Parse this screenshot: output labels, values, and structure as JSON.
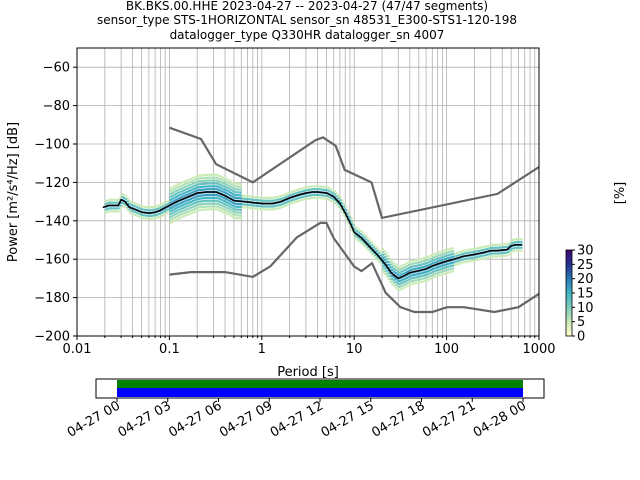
{
  "title_lines": [
    "BK.BKS.00.HHE   2023-04-27 -- 2023-04-27  (47/47 segments)",
    "sensor_type STS-1HORIZONTAL sensor_sn 48531_E300-STS1-120-198",
    "datalogger_type Q330HR datalogger_sn 4007"
  ],
  "chart_data": {
    "type": "heatmap",
    "xlabel": "Period [s]",
    "ylabel": "Power [m²/s⁴/Hz] [dB]",
    "xscale": "log",
    "xlim": [
      0.01,
      1000
    ],
    "ylim": [
      -200,
      -50
    ],
    "x_ticks": [
      0.01,
      0.1,
      1,
      10,
      100,
      1000
    ],
    "x_tick_labels": [
      "0.01",
      "0.1",
      "1",
      "10",
      "100",
      "1000"
    ],
    "y_ticks": [
      -200,
      -180,
      -160,
      -140,
      -120,
      -100,
      -80,
      -60
    ],
    "y_tick_labels": [
      "−200",
      "−180",
      "−160",
      "−140",
      "−120",
      "−100",
      "−80",
      "−60"
    ],
    "grid": true,
    "colorbar": {
      "label": "[%]",
      "ticks": [
        0,
        5,
        10,
        15,
        20,
        25,
        30
      ],
      "tick_labels": [
        "0",
        "5",
        "10",
        "15",
        "20",
        "25",
        "30"
      ],
      "colormap": [
        "#ffffcc",
        "#c7e9b4",
        "#7fcdbb",
        "#41b6c4",
        "#2c7fb8",
        "#253494",
        "#3b0f70"
      ]
    },
    "noise_models": {
      "nhnm": {
        "x": [
          0.1,
          0.22,
          0.32,
          0.8,
          3.8,
          4.6,
          6.3,
          7.9,
          15.4,
          20,
          354.8,
          1000
        ],
        "y": [
          -91.5,
          -97.4,
          -110.5,
          -120,
          -98,
          -96.5,
          -101,
          -113.5,
          -120,
          -138.5,
          -126,
          -112
        ]
      },
      "nlnm": {
        "x": [
          0.1,
          0.17,
          0.4,
          0.8,
          1.24,
          2.4,
          4.3,
          5.0,
          6.0,
          10.0,
          12.0,
          15.6,
          21.9,
          31.6,
          45,
          70,
          101,
          154,
          328,
          600,
          1000
        ],
        "y": [
          -168,
          -166.7,
          -166.7,
          -169.2,
          -163.7,
          -148.6,
          -141.1,
          -141.1,
          -149,
          -163.8,
          -166.2,
          -162.1,
          -177.5,
          -185,
          -187.5,
          -187.5,
          -185,
          -185,
          -187.5,
          -185,
          -178
        ]
      },
      "color": "#666666"
    },
    "mode_curve": {
      "x": [
        0.019,
        0.022,
        0.025,
        0.028,
        0.03,
        0.033,
        0.037,
        0.042,
        0.05,
        0.06,
        0.07,
        0.08,
        0.1,
        0.12,
        0.15,
        0.2,
        0.25,
        0.32,
        0.4,
        0.5,
        0.65,
        0.8,
        1.0,
        1.3,
        1.6,
        2,
        2.5,
        3,
        3.5,
        4,
        5,
        6,
        7,
        8,
        9,
        10,
        12,
        15,
        18,
        22,
        25,
        28,
        30,
        35,
        40,
        50,
        60,
        70,
        80,
        100,
        120,
        150,
        200,
        250,
        300,
        350,
        450,
        500,
        550,
        600,
        650
      ],
      "y": [
        -133,
        -132,
        -132,
        -132,
        -129,
        -130,
        -133,
        -134,
        -135.5,
        -136,
        -135.5,
        -134.5,
        -132,
        -130,
        -128,
        -125.5,
        -125,
        -125,
        -127,
        -129.5,
        -130,
        -130.5,
        -131,
        -131,
        -130,
        -128,
        -126.5,
        -125.5,
        -125,
        -125,
        -125.5,
        -127.5,
        -131,
        -136,
        -141,
        -146,
        -149,
        -154,
        -158,
        -163,
        -167,
        -169,
        -170,
        -168.5,
        -167,
        -166,
        -165,
        -163.5,
        -162.5,
        -161,
        -160,
        -158.5,
        -157.5,
        -156.5,
        -155.5,
        -155.5,
        -155,
        -153,
        -152.5,
        -152.5,
        -152.5
      ],
      "color": "#000000"
    }
  },
  "coverage": {
    "tick_labels": [
      "04-27 00",
      "04-27 03",
      "04-27 06",
      "04-27 09",
      "04-27 12",
      "04-27 15",
      "04-27 18",
      "04-27 21",
      "04-28 00"
    ],
    "colors": [
      "#008000",
      "#0000ff"
    ]
  }
}
